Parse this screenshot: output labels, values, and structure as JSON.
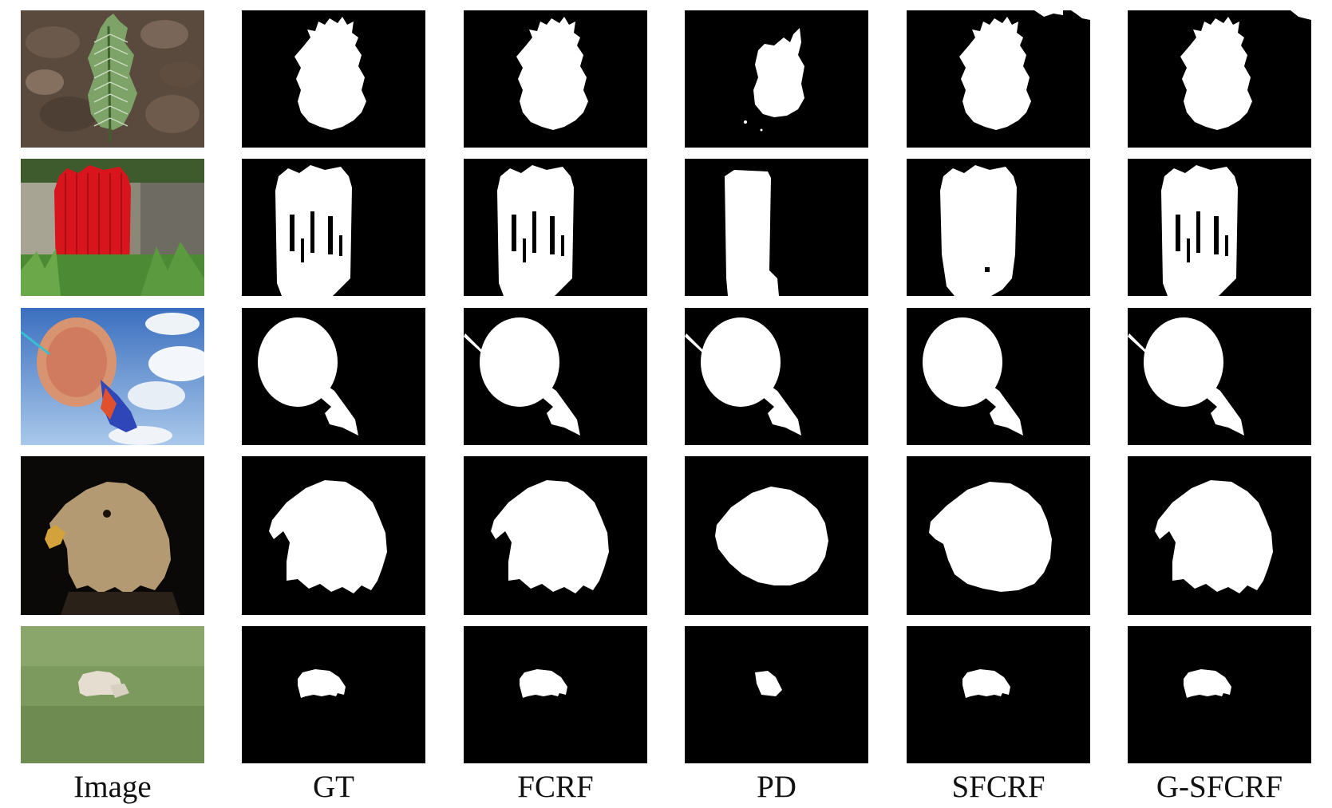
{
  "figure": {
    "columns": [
      "Image",
      "GT",
      "FCRF",
      "PD",
      "SFCRF",
      "G-SFCRF"
    ],
    "rows": [
      "plant",
      "red-door",
      "kite",
      "eagle",
      "sheep"
    ]
  },
  "colors": {
    "mask_bg": "#000000",
    "mask_fg": "#ffffff"
  }
}
